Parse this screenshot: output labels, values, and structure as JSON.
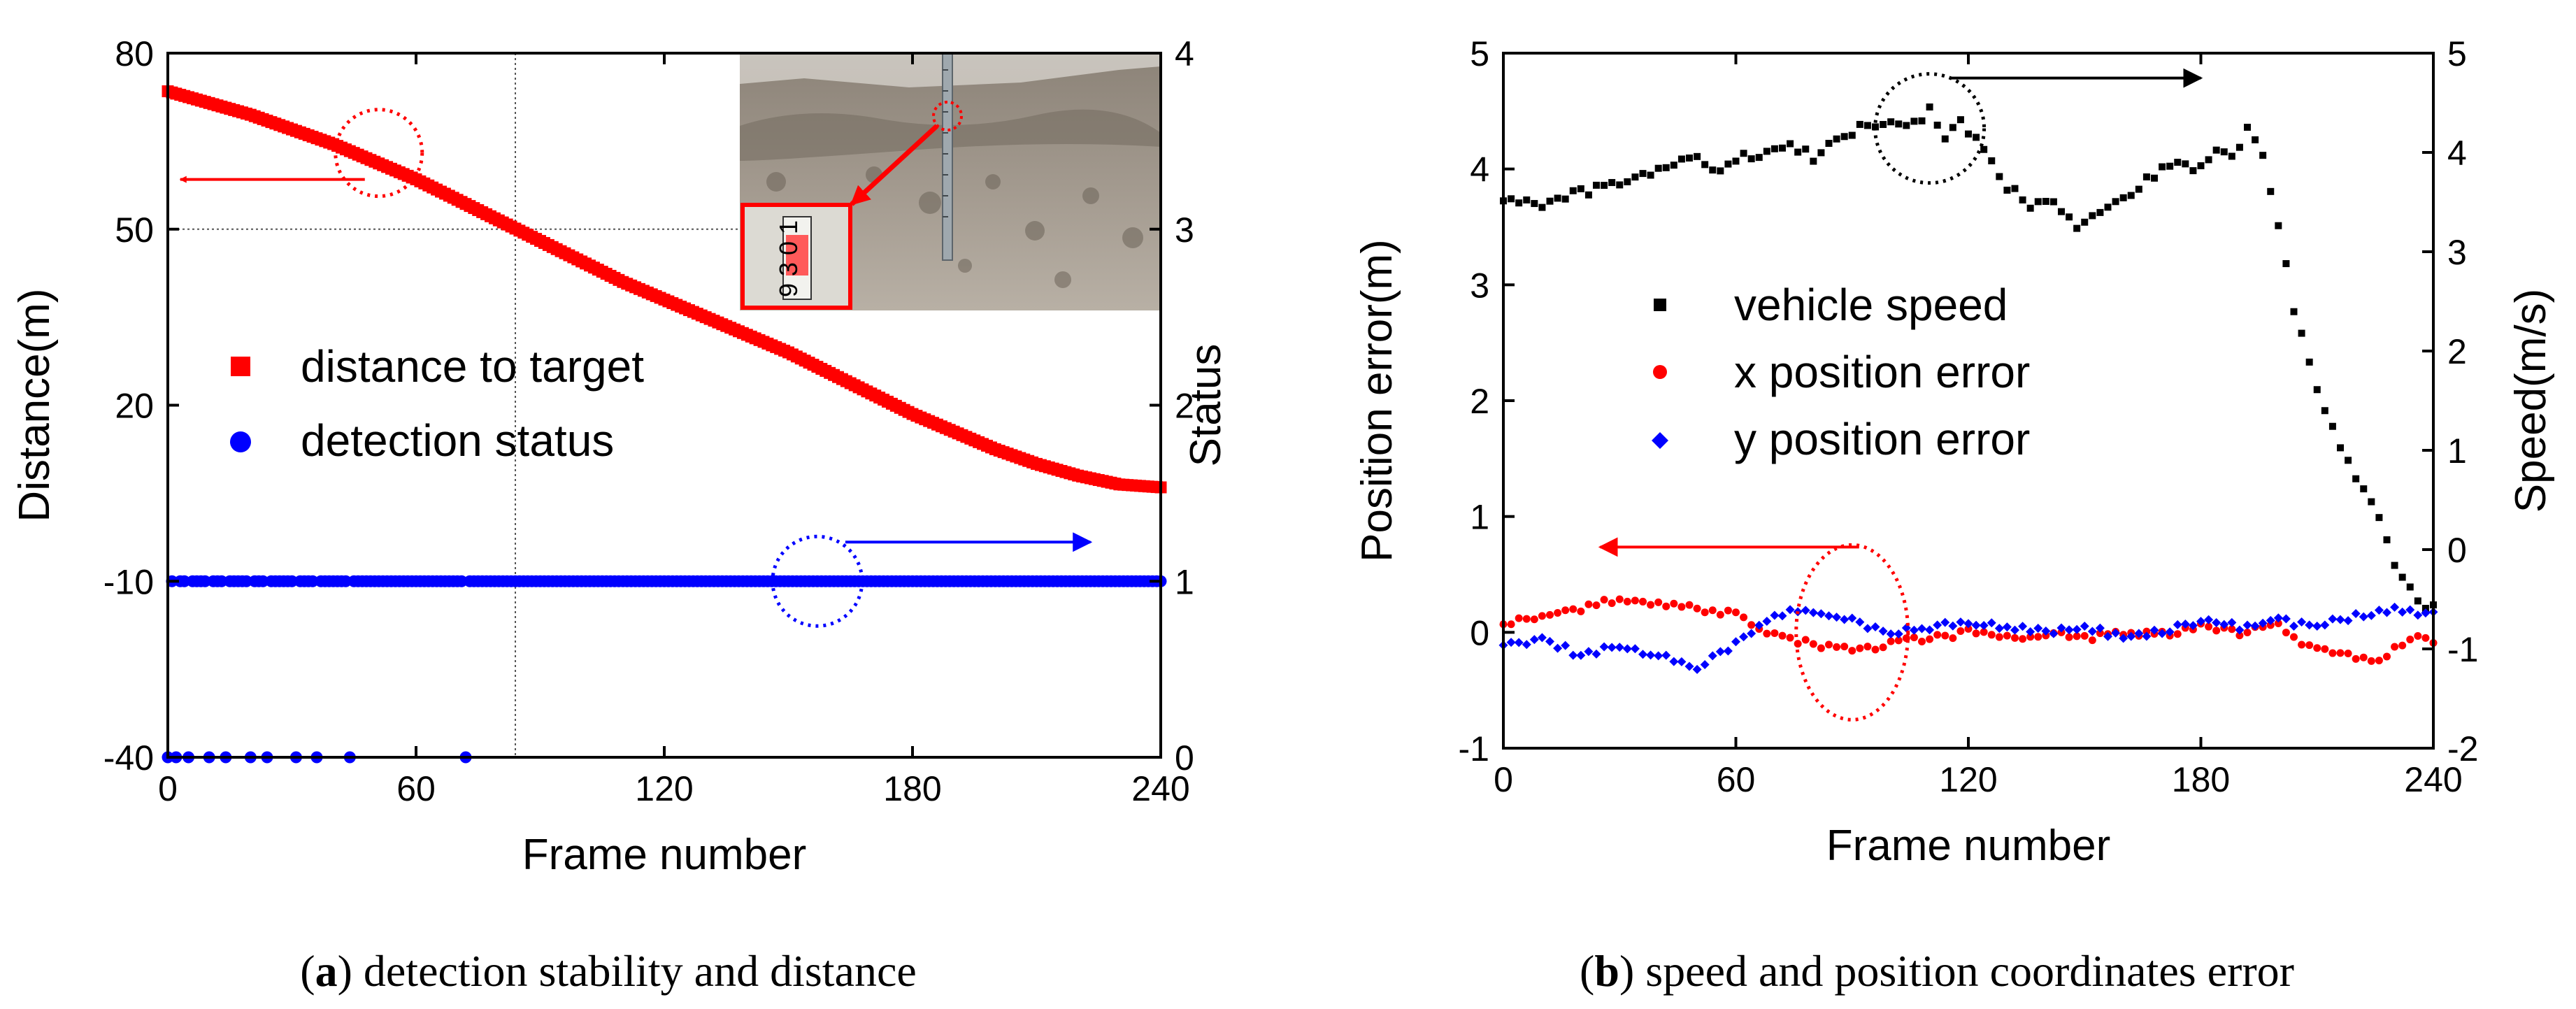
{
  "chart_data": [
    {
      "id": "a",
      "type": "scatter",
      "caption_letter": "a",
      "caption_text": " detection stability and distance",
      "xlabel": "Frame number",
      "ylabel": "Distance(m)",
      "ylabel_right": "Status",
      "xlim": [
        0,
        240
      ],
      "ylim": [
        -40,
        80
      ],
      "ylim_right": [
        0,
        4
      ],
      "xticks": [
        "0",
        "60",
        "120",
        "180",
        "240"
      ],
      "yticks": [
        "-40",
        "-10",
        "20",
        "50",
        "80"
      ],
      "yticks_right": [
        "0",
        "1",
        "2",
        "3",
        "4"
      ],
      "legend_placement": "center-left",
      "reference_lines": {
        "x": 84,
        "y": 50
      },
      "series": [
        {
          "name": "distance to target",
          "axis": "left",
          "marker": "square",
          "color": "#ff0000",
          "points": [
            [
              0,
              73.5
            ],
            [
              10,
              71.5
            ],
            [
              20,
              69.5
            ],
            [
              30,
              67
            ],
            [
              40,
              64.5
            ],
            [
              50,
              61.5
            ],
            [
              60,
              58.5
            ],
            [
              70,
              55
            ],
            [
              80,
              51.5
            ],
            [
              90,
              48
            ],
            [
              100,
              44.5
            ],
            [
              110,
              41
            ],
            [
              120,
              38
            ],
            [
              130,
              35
            ],
            [
              140,
              32
            ],
            [
              150,
              29
            ],
            [
              160,
              25.5
            ],
            [
              170,
              22
            ],
            [
              180,
              18.5
            ],
            [
              190,
              15.5
            ],
            [
              200,
              12.5
            ],
            [
              210,
              10
            ],
            [
              220,
              8
            ],
            [
              230,
              6.5
            ],
            [
              240,
              6
            ]
          ]
        },
        {
          "name": "detection status",
          "axis": "right",
          "marker": "circle",
          "color": "#0000ff",
          "ones_range": [
            0,
            240
          ],
          "gaps": [],
          "zeros": [
            0,
            2,
            5,
            10,
            14,
            20,
            24,
            31,
            36,
            44,
            72
          ]
        }
      ],
      "annotations": [
        {
          "type": "circle",
          "color": "#ff0000",
          "x": 51,
          "y": 63,
          "arrow_to_x": 3
        },
        {
          "type": "circle",
          "color": "#0000ff",
          "x": 157,
          "y_right": 1,
          "arrow_to_x": 223
        }
      ]
    },
    {
      "id": "b",
      "type": "scatter",
      "caption_letter": "b",
      "caption_text": " speed and position coordinates error",
      "xlabel": "Frame number",
      "ylabel": "Position error(m)",
      "ylabel_right": "Speed(m/s)",
      "xlim": [
        0,
        240
      ],
      "ylim": [
        -1,
        5
      ],
      "ylim_right": [
        -2,
        5
      ],
      "xticks": [
        "0",
        "60",
        "120",
        "180",
        "240"
      ],
      "yticks": [
        "-1",
        "0",
        "1",
        "2",
        "3",
        "4",
        "5"
      ],
      "yticks_right": [
        "-2",
        "-1",
        "0",
        "1",
        "2",
        "3",
        "4",
        "5"
      ],
      "legend_placement": "center",
      "series": [
        {
          "name": "vehicle speed",
          "axis": "left",
          "marker": "square",
          "color": "#000000",
          "points": [
            [
              0,
              3.75
            ],
            [
              8,
              3.7
            ],
            [
              14,
              3.72
            ],
            [
              20,
              3.8
            ],
            [
              28,
              3.85
            ],
            [
              36,
              3.95
            ],
            [
              42,
              4.0
            ],
            [
              48,
              4.1
            ],
            [
              56,
              4.0
            ],
            [
              62,
              4.1
            ],
            [
              68,
              4.15
            ],
            [
              74,
              4.2
            ],
            [
              80,
              4.1
            ],
            [
              86,
              4.25
            ],
            [
              92,
              4.35
            ],
            [
              100,
              4.4
            ],
            [
              106,
              4.4
            ],
            [
              110,
              4.5
            ],
            [
              114,
              4.25
            ],
            [
              118,
              4.4
            ],
            [
              124,
              4.15
            ],
            [
              130,
              3.85
            ],
            [
              136,
              3.7
            ],
            [
              142,
              3.75
            ],
            [
              148,
              3.5
            ],
            [
              154,
              3.65
            ],
            [
              160,
              3.75
            ],
            [
              166,
              3.9
            ],
            [
              172,
              4.05
            ],
            [
              178,
              4.0
            ],
            [
              184,
              4.15
            ],
            [
              188,
              4.1
            ],
            [
              192,
              4.35
            ],
            [
              196,
              4.1
            ],
            [
              200,
              3.5
            ],
            [
              204,
              2.8
            ],
            [
              208,
              2.3
            ],
            [
              212,
              1.95
            ],
            [
              216,
              1.6
            ],
            [
              220,
              1.3
            ],
            [
              226,
              1.0
            ],
            [
              230,
              0.6
            ],
            [
              236,
              0.25
            ],
            [
              240,
              0.2
            ]
          ]
        },
        {
          "name": "x position error",
          "axis": "left",
          "marker": "circle",
          "color": "#ff0000",
          "points": [
            [
              0,
              0.08
            ],
            [
              10,
              0.12
            ],
            [
              20,
              0.2
            ],
            [
              30,
              0.3
            ],
            [
              40,
              0.25
            ],
            [
              50,
              0.2
            ],
            [
              60,
              0.15
            ],
            [
              66,
              0.05
            ],
            [
              72,
              -0.05
            ],
            [
              80,
              -0.1
            ],
            [
              90,
              -0.15
            ],
            [
              100,
              -0.1
            ],
            [
              110,
              -0.05
            ],
            [
              120,
              0.0
            ],
            [
              130,
              -0.05
            ],
            [
              140,
              0.0
            ],
            [
              150,
              -0.05
            ],
            [
              160,
              0.0
            ],
            [
              170,
              -0.02
            ],
            [
              180,
              0.05
            ],
            [
              190,
              0.0
            ],
            [
              200,
              0.05
            ],
            [
              206,
              -0.1
            ],
            [
              212,
              -0.15
            ],
            [
              218,
              -0.2
            ],
            [
              224,
              -0.25
            ],
            [
              230,
              -0.15
            ],
            [
              236,
              -0.05
            ],
            [
              240,
              -0.1
            ]
          ]
        },
        {
          "name": "y position error",
          "axis": "left",
          "marker": "diamond",
          "color": "#0000ff",
          "points": [
            [
              0,
              -0.12
            ],
            [
              10,
              -0.05
            ],
            [
              20,
              -0.2
            ],
            [
              30,
              -0.1
            ],
            [
              40,
              -0.2
            ],
            [
              50,
              -0.3
            ],
            [
              60,
              -0.1
            ],
            [
              66,
              0.05
            ],
            [
              74,
              0.2
            ],
            [
              80,
              0.15
            ],
            [
              90,
              0.1
            ],
            [
              100,
              0.0
            ],
            [
              110,
              0.05
            ],
            [
              120,
              0.1
            ],
            [
              130,
              0.05
            ],
            [
              140,
              0.0
            ],
            [
              150,
              0.05
            ],
            [
              160,
              -0.05
            ],
            [
              170,
              0.0
            ],
            [
              180,
              0.1
            ],
            [
              190,
              0.05
            ],
            [
              200,
              0.1
            ],
            [
              210,
              0.05
            ],
            [
              220,
              0.15
            ],
            [
              230,
              0.2
            ],
            [
              240,
              0.15
            ]
          ]
        }
      ],
      "annotations": [
        {
          "type": "ellipse",
          "color": "#000000",
          "x": 110,
          "y": 4.35,
          "arrow_to_x": 180
        },
        {
          "type": "ellipse",
          "color": "#ff0000",
          "x": 90,
          "y": 0.0,
          "arrow_to_x": 25
        }
      ]
    }
  ],
  "photo_label": "9 3 0 1"
}
